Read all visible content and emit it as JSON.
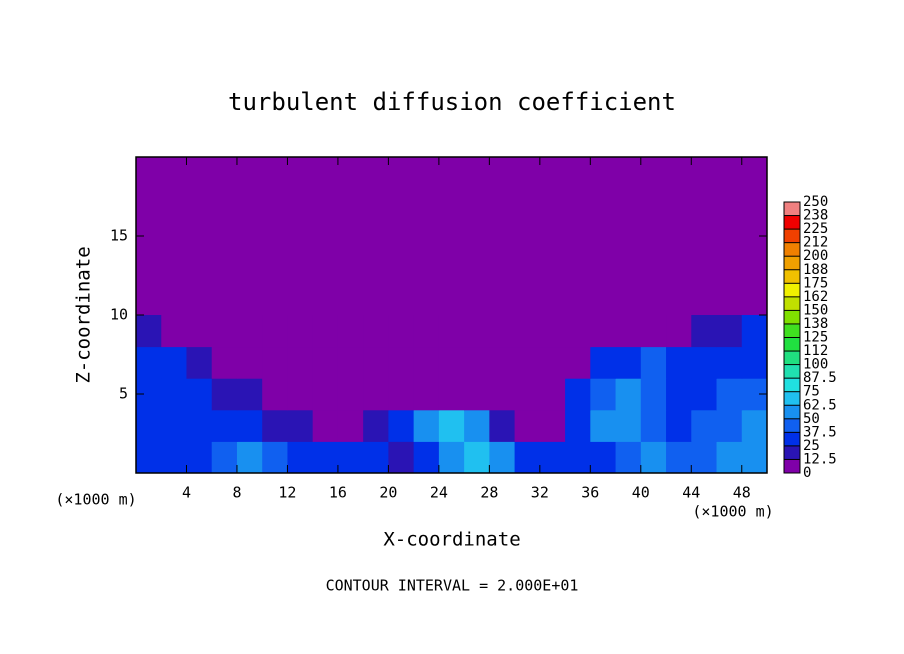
{
  "chart_data": {
    "type": "heatmap",
    "title": "turbulent diffusion coefficient",
    "xlabel": "X-coordinate",
    "ylabel": "Z-coordinate",
    "y_unit": "(×1000 m)",
    "x_unit": "(×1000 m)",
    "footnote": "CONTOUR INTERVAL = 2.000E+01",
    "xlim": [
      0,
      50
    ],
    "ylim": [
      0,
      20
    ],
    "xticks": [
      4,
      8,
      12,
      16,
      20,
      24,
      28,
      32,
      36,
      40,
      44,
      48
    ],
    "yticks": [
      5,
      10,
      15
    ],
    "xbins": [
      0,
      2,
      4,
      6,
      8,
      10,
      12,
      14,
      16,
      18,
      20,
      22,
      24,
      26,
      28,
      30,
      32,
      34,
      36,
      38,
      40,
      42,
      44,
      46,
      48,
      50
    ],
    "ybins": [
      0,
      2,
      4,
      6,
      8,
      10
    ],
    "values": [
      [
        35,
        35,
        30,
        40,
        55,
        45,
        35,
        30,
        25,
        25,
        20,
        30,
        55,
        65,
        50,
        30,
        25,
        30,
        35,
        45,
        60,
        40,
        40,
        55,
        60
      ],
      [
        30,
        30,
        25,
        35,
        30,
        20,
        15,
        10,
        10,
        15,
        25,
        60,
        65,
        55,
        20,
        10,
        10,
        35,
        50,
        55,
        40,
        35,
        40,
        45,
        55
      ],
      [
        30,
        30,
        25,
        20,
        15,
        5,
        5,
        0,
        0,
        0,
        0,
        5,
        10,
        5,
        0,
        0,
        0,
        30,
        45,
        50,
        45,
        30,
        35,
        40,
        40
      ],
      [
        25,
        25,
        20,
        10,
        0,
        0,
        0,
        0,
        0,
        0,
        0,
        0,
        0,
        0,
        0,
        0,
        0,
        10,
        30,
        35,
        40,
        30,
        30,
        30,
        35
      ],
      [
        15,
        0,
        0,
        0,
        0,
        0,
        0,
        0,
        0,
        0,
        0,
        0,
        0,
        0,
        0,
        0,
        0,
        0,
        0,
        0,
        0,
        10,
        15,
        20,
        25
      ]
    ],
    "levels": [
      0,
      12.5,
      25,
      37.5,
      50,
      62.5,
      75,
      87.5,
      100,
      {
        "value": 112.5,
        "label": "112"
      },
      125,
      {
        "value": 137.5,
        "label": "138"
      },
      150,
      {
        "value": 162.5,
        "label": "162"
      },
      175,
      {
        "value": 187.5,
        "label": "188"
      },
      200,
      {
        "value": 212.5,
        "label": "212"
      },
      225,
      {
        "value": 237.5,
        "label": "238"
      },
      250
    ],
    "colors": [
      "#7f00a8",
      "#2a14b4",
      "#0030e8",
      "#1060f0",
      "#1890f0",
      "#20c0f0",
      "#20e0e0",
      "#20e0b0",
      "#20e080",
      "#20e040",
      "#40e020",
      "#80e000",
      "#c0e000",
      "#f0f000",
      "#f0c000",
      "#f0a000",
      "#f08000",
      "#f04000",
      "#f00000",
      "#f08080"
    ]
  }
}
